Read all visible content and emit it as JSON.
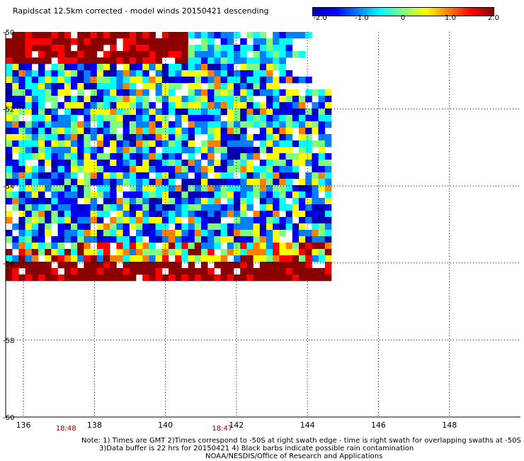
{
  "title": "Rapidscat 12.5km corrected - model winds 20150421 descending",
  "colorbar": {
    "labels": [
      "-2.0",
      "-1.0",
      "0",
      "1.0",
      "2.0"
    ],
    "values": [
      -2.0,
      -1.0,
      0,
      1.0,
      2.0
    ],
    "range": [
      -2.0,
      2.0
    ],
    "colors": [
      "#0000b0",
      "#0000ff",
      "#0080ff",
      "#00ffff",
      "#80ff80",
      "#ffff00",
      "#ff8000",
      "#ff0000",
      "#8b0000"
    ]
  },
  "map": {
    "lon_range": [
      135.5,
      150.0
    ],
    "lat_range": [
      -60.0,
      -50.0
    ],
    "lon_ticks": [
      136,
      138,
      140,
      142,
      144,
      146,
      148
    ],
    "lon_tick_labels": [
      "136",
      "138",
      "140",
      "142",
      "144",
      "146",
      "148"
    ],
    "lat_ticks": [
      -50,
      -52,
      -54,
      -56,
      -58,
      -60
    ],
    "lat_tick_labels": [
      "-50",
      "-52",
      "-54",
      "-56",
      "-58",
      "-60"
    ],
    "grid": true,
    "swath_lon_range": [
      135.5,
      144.6
    ],
    "swath_lat_range": [
      -56.4,
      -50.0
    ]
  },
  "times": [
    {
      "label": "18:48",
      "lon": 137.2
    },
    {
      "label": "18:47",
      "lon": 141.6
    }
  ],
  "notes": [
    "Note: 1) Times are GMT 2)Times correspond to -50S at right swath edge - time is right swath for overlapping swaths at -50S",
    "3)Data buffer is 22 hrs for 20150421 4) Black barbs indicate possible rain contamination",
    "NOAA/NESDIS/Office of Research and Applications"
  ]
}
